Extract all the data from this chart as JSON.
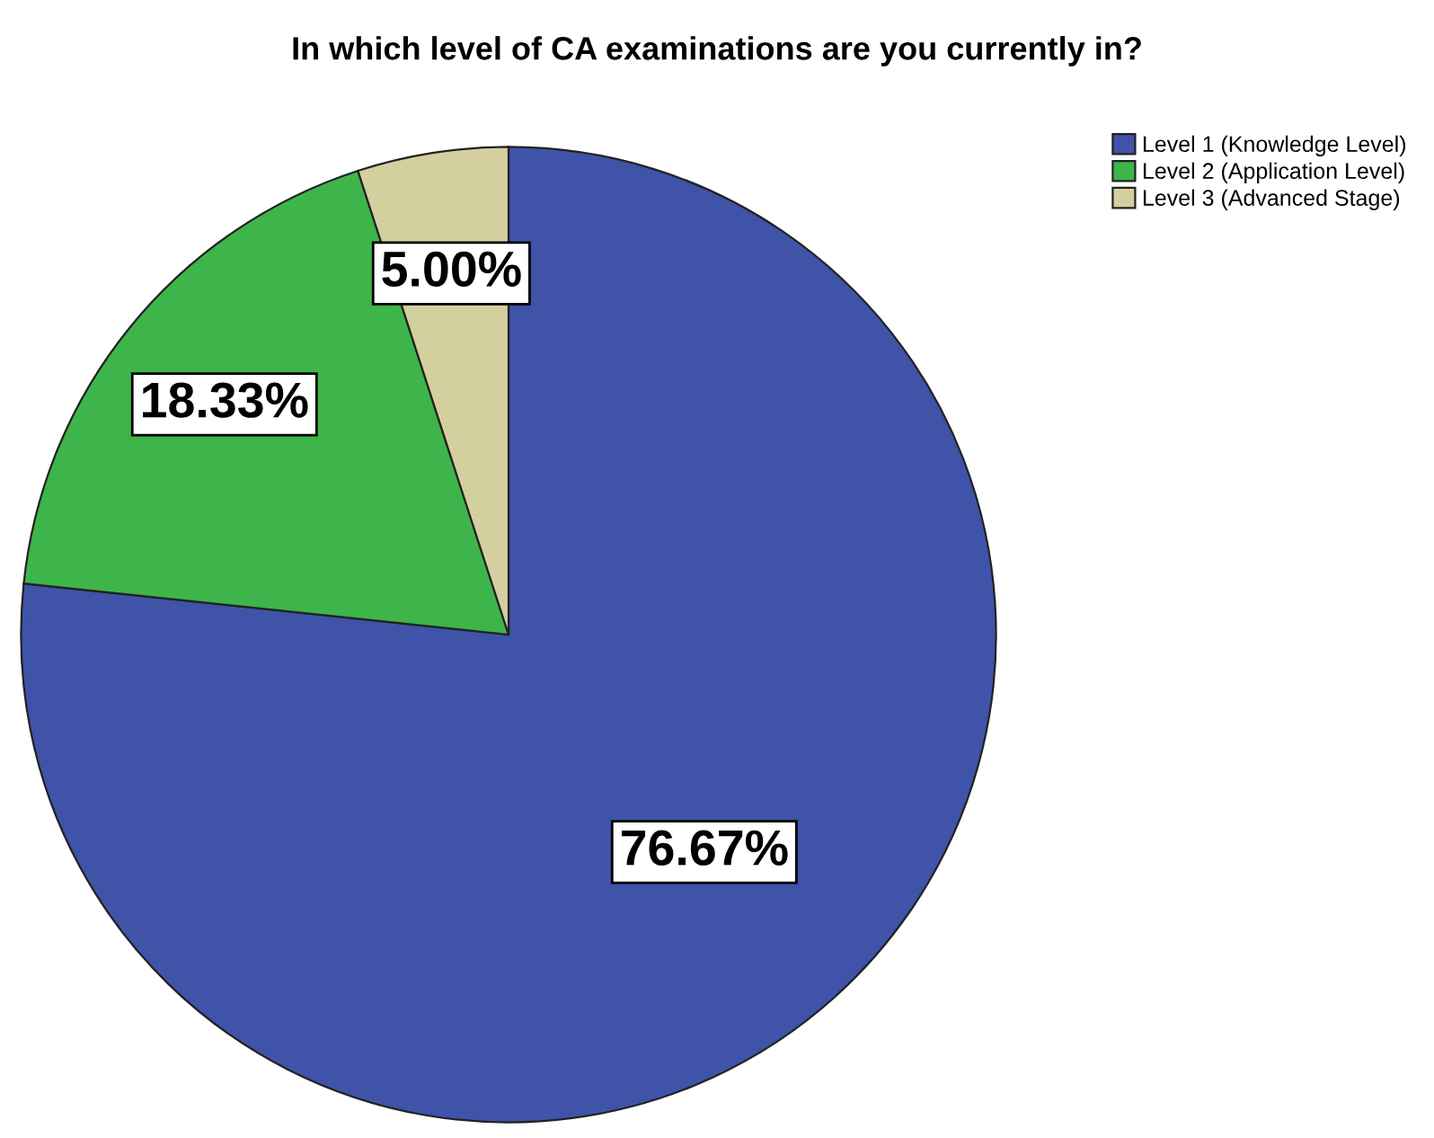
{
  "chart_data": {
    "type": "pie",
    "title": "In which level of CA examinations are you currently in?",
    "categories": [
      "Level 1 (Knowledge Level)",
      "Level 2 (Application Level)",
      "Level 3 (Advanced Stage)"
    ],
    "values": [
      76.67,
      18.33,
      5.0
    ],
    "value_labels": [
      "76.67%",
      "18.33%",
      "5.00%"
    ],
    "colors": [
      "#3f53a8",
      "#3db54a",
      "#d4cf9e"
    ],
    "legend": "top right"
  }
}
